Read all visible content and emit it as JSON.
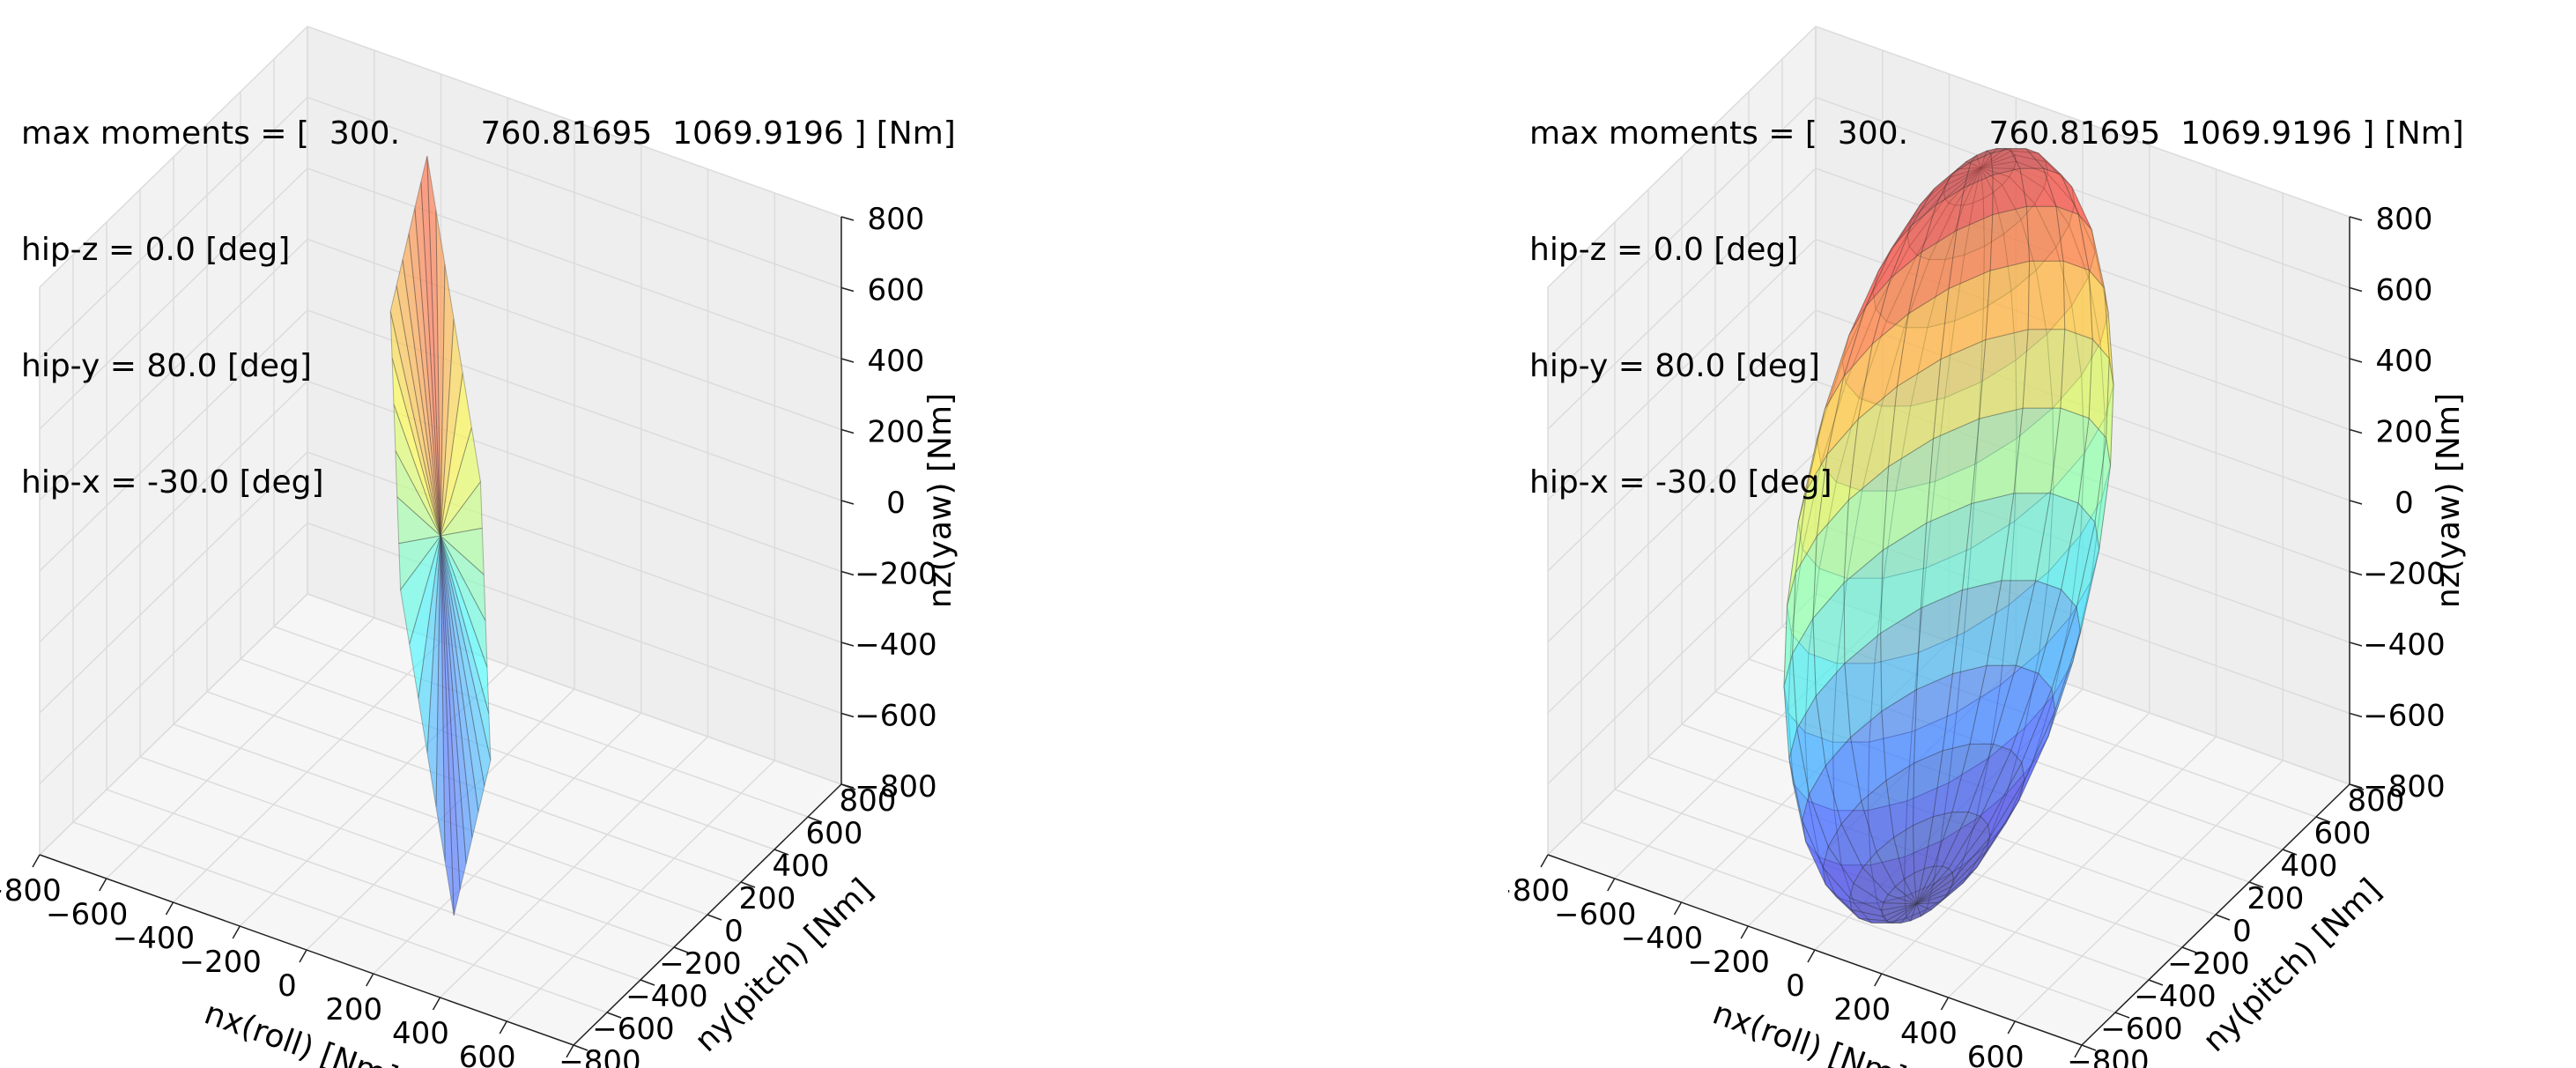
{
  "panels": [
    {
      "info": {
        "max_moments": "max moments = [  300.        760.81695  1069.9196 ] [Nm]",
        "hip_z": "hip-z = 0.0 [deg]",
        "hip_y": "hip-y = 80.0 [deg]",
        "hip_x": "hip-x = -30.0 [deg]"
      }
    },
    {
      "info": {
        "max_moments": "max moments = [  300.        760.81695  1069.9196 ] [Nm]",
        "hip_z": "hip-z = 0.0 [deg]",
        "hip_y": "hip-y = 80.0 [deg]",
        "hip_x": "hip-x = -30.0 [deg]"
      }
    }
  ],
  "chart_data": [
    {
      "type": "surface3d",
      "title": "",
      "xlabel": "nx(roll) [Nm]",
      "ylabel": "ny(pitch) [Nm]",
      "zlabel": "nz(yaw) [Nm]",
      "xlim": [
        -800,
        800
      ],
      "ylim": [
        -800,
        800
      ],
      "zlim": [
        -800,
        800
      ],
      "xticks": [
        "−800",
        "−600",
        "−400",
        "−200",
        "0",
        "200",
        "400",
        "600",
        "800"
      ],
      "yticks": [
        "−800",
        "−600",
        "−400",
        "−200",
        "0",
        "200",
        "400",
        "600",
        "800"
      ],
      "zticks": [
        "−800",
        "−600",
        "−400",
        "−200",
        "0",
        "200",
        "400",
        "600",
        "800"
      ],
      "grid": true,
      "colormap": "jet",
      "alpha": 0.55,
      "surface": "thin sheet (nearly planar polytope)",
      "extent": {
        "nx": [
          -150,
          150
        ],
        "ny": [
          -60,
          60
        ],
        "nz": [
          -1070,
          1070
        ]
      }
    },
    {
      "type": "surface3d",
      "title": "",
      "xlabel": "nx(roll) [Nm]",
      "ylabel": "ny(pitch) [Nm]",
      "zlabel": "nz(yaw) [Nm]",
      "xlim": [
        -800,
        800
      ],
      "ylim": [
        -800,
        800
      ],
      "zlim": [
        -800,
        800
      ],
      "xticks": [
        "−800",
        "−600",
        "−400",
        "−200",
        "0",
        "200",
        "400",
        "600",
        "800"
      ],
      "yticks": [
        "−800",
        "−600",
        "−400",
        "−200",
        "0",
        "200",
        "400",
        "600",
        "800"
      ],
      "zticks": [
        "−800",
        "−600",
        "−400",
        "−200",
        "0",
        "200",
        "400",
        "600",
        "800"
      ],
      "grid": true,
      "colormap": "jet",
      "alpha": 0.55,
      "surface": "closed convex polytope",
      "extent": {
        "nx": [
          -300,
          300
        ],
        "ny": [
          -760,
          760
        ],
        "nz": [
          -1070,
          1070
        ]
      }
    }
  ]
}
